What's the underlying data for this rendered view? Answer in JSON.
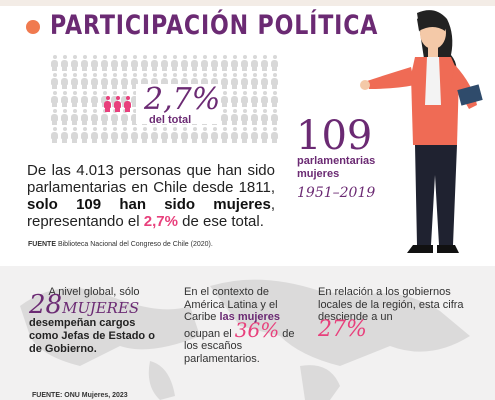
{
  "header": {
    "title": "PARTICIPACIÓN POLÍTICA"
  },
  "stat": {
    "percent": "2,7%",
    "percent_label": "del total"
  },
  "highlight": {
    "number": "109",
    "label": "parlamentarias mujeres",
    "years": "1951–2019"
  },
  "paragraph": {
    "part1": "De las 4.013 personas que han sido parlamentarias en Chile desde 1811,",
    "part2_bold": "solo 109 han sido mujeres",
    "part3": ", representando el",
    "part4_pct": "2,7%",
    "part5": "de ese total."
  },
  "source1": {
    "label": "FUENTE",
    "text": "Biblioteca Nacional del Congreso de Chile (2020)."
  },
  "col1": {
    "intro": "A nivel global, sólo",
    "number": "28",
    "mujeres": "MUJERES",
    "text": "desempeñan cargos como Jefas de Estado o de Gobierno."
  },
  "col2": {
    "text1": "En el contexto de América Latina y el Caribe",
    "bold": "las mujeres",
    "text2": "ocupan el",
    "pct": "36%",
    "text3": "de los escaños parlamentarios."
  },
  "col3": {
    "text": "En relación a los gobiernos locales de la región, esta cifra desciende a un",
    "pct": "27%"
  },
  "source2": {
    "text": "FUENTE: ONU Mujeres, 2023"
  },
  "colors": {
    "purple": "#6b2a73",
    "pink": "#e8407c",
    "orange": "#f07a4f"
  }
}
